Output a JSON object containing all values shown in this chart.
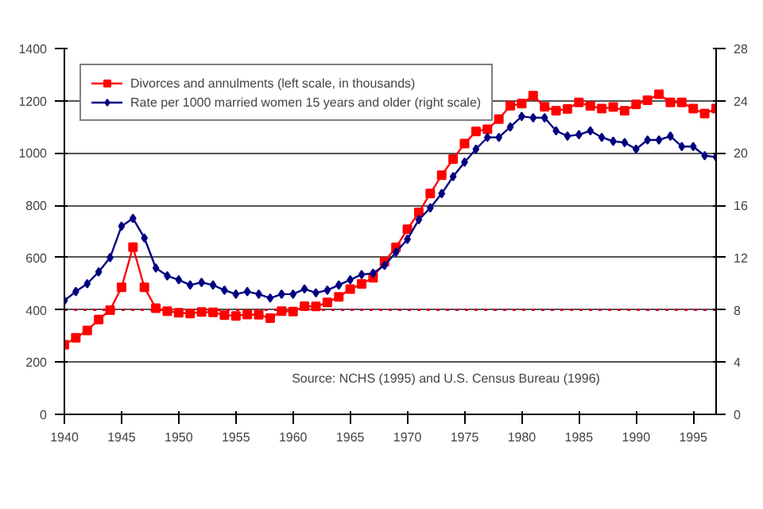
{
  "chart_data": {
    "type": "line",
    "x": [
      1940,
      1941,
      1942,
      1943,
      1944,
      1945,
      1946,
      1947,
      1948,
      1949,
      1950,
      1951,
      1952,
      1953,
      1954,
      1955,
      1956,
      1957,
      1958,
      1959,
      1960,
      1961,
      1962,
      1963,
      1964,
      1965,
      1966,
      1967,
      1968,
      1969,
      1970,
      1971,
      1972,
      1973,
      1974,
      1975,
      1976,
      1977,
      1978,
      1979,
      1980,
      1981,
      1982,
      1983,
      1984,
      1985,
      1986,
      1987,
      1988,
      1989,
      1990,
      1991,
      1992,
      1993,
      1994,
      1995,
      1996,
      1997
    ],
    "series": [
      {
        "name": "Divorces and annulments (left scale, in thousands)",
        "color": "#ff0000",
        "marker": "square",
        "values": [
          266,
          293,
          321,
          363,
          399,
          486,
          640,
          486,
          406,
          395,
          389,
          386,
          392,
          390,
          380,
          377,
          382,
          381,
          368,
          395,
          393,
          414,
          413,
          428,
          450,
          479,
          499,
          523,
          584,
          639,
          708,
          773,
          845,
          915,
          977,
          1036,
          1083,
          1091,
          1130,
          1181,
          1189,
          1220,
          1177,
          1162,
          1169,
          1194,
          1180,
          1170,
          1176,
          1162,
          1186,
          1202,
          1225,
          1194,
          1194,
          1170,
          1151,
          1170
        ]
      },
      {
        "name": "Rate per 1000 married women 15 years and older (right scale)",
        "color": "#000080",
        "marker": "diamond",
        "axis": "y2",
        "values": [
          8.7,
          9.4,
          10.0,
          10.9,
          12.0,
          14.4,
          15.0,
          13.5,
          11.2,
          10.6,
          10.3,
          9.9,
          10.1,
          9.9,
          9.5,
          9.2,
          9.4,
          9.2,
          8.9,
          9.2,
          9.2,
          9.6,
          9.3,
          9.5,
          9.9,
          10.3,
          10.7,
          10.8,
          11.4,
          12.4,
          13.4,
          14.9,
          15.8,
          16.9,
          18.2,
          19.3,
          20.3,
          21.2,
          21.2,
          22.0,
          22.8,
          22.7,
          22.7,
          21.7,
          21.3,
          21.4,
          21.7,
          21.2,
          20.9,
          20.8,
          20.3,
          21.0,
          21.0,
          21.3,
          20.5,
          20.5,
          19.8,
          19.7
        ]
      }
    ],
    "xlim": [
      1940,
      1997
    ],
    "xticks": [
      1940,
      1945,
      1950,
      1955,
      1960,
      1965,
      1970,
      1975,
      1980,
      1985,
      1990,
      1995
    ],
    "ylim": [
      0,
      1400
    ],
    "yticks": [
      0,
      200,
      400,
      600,
      800,
      1000,
      1200,
      1400
    ],
    "y2lim": [
      0,
      28
    ],
    "y2ticks": [
      0,
      4,
      8,
      12,
      16,
      20,
      24,
      28
    ],
    "ref_lines": [
      {
        "axis": "y",
        "value": 400,
        "color": "#cc0033",
        "line_style": "dotted"
      }
    ],
    "grid": "y",
    "legend": "top left",
    "annotations": [
      "Source: NCHS (1995) and U.S. Census Bureau (1996)"
    ]
  }
}
